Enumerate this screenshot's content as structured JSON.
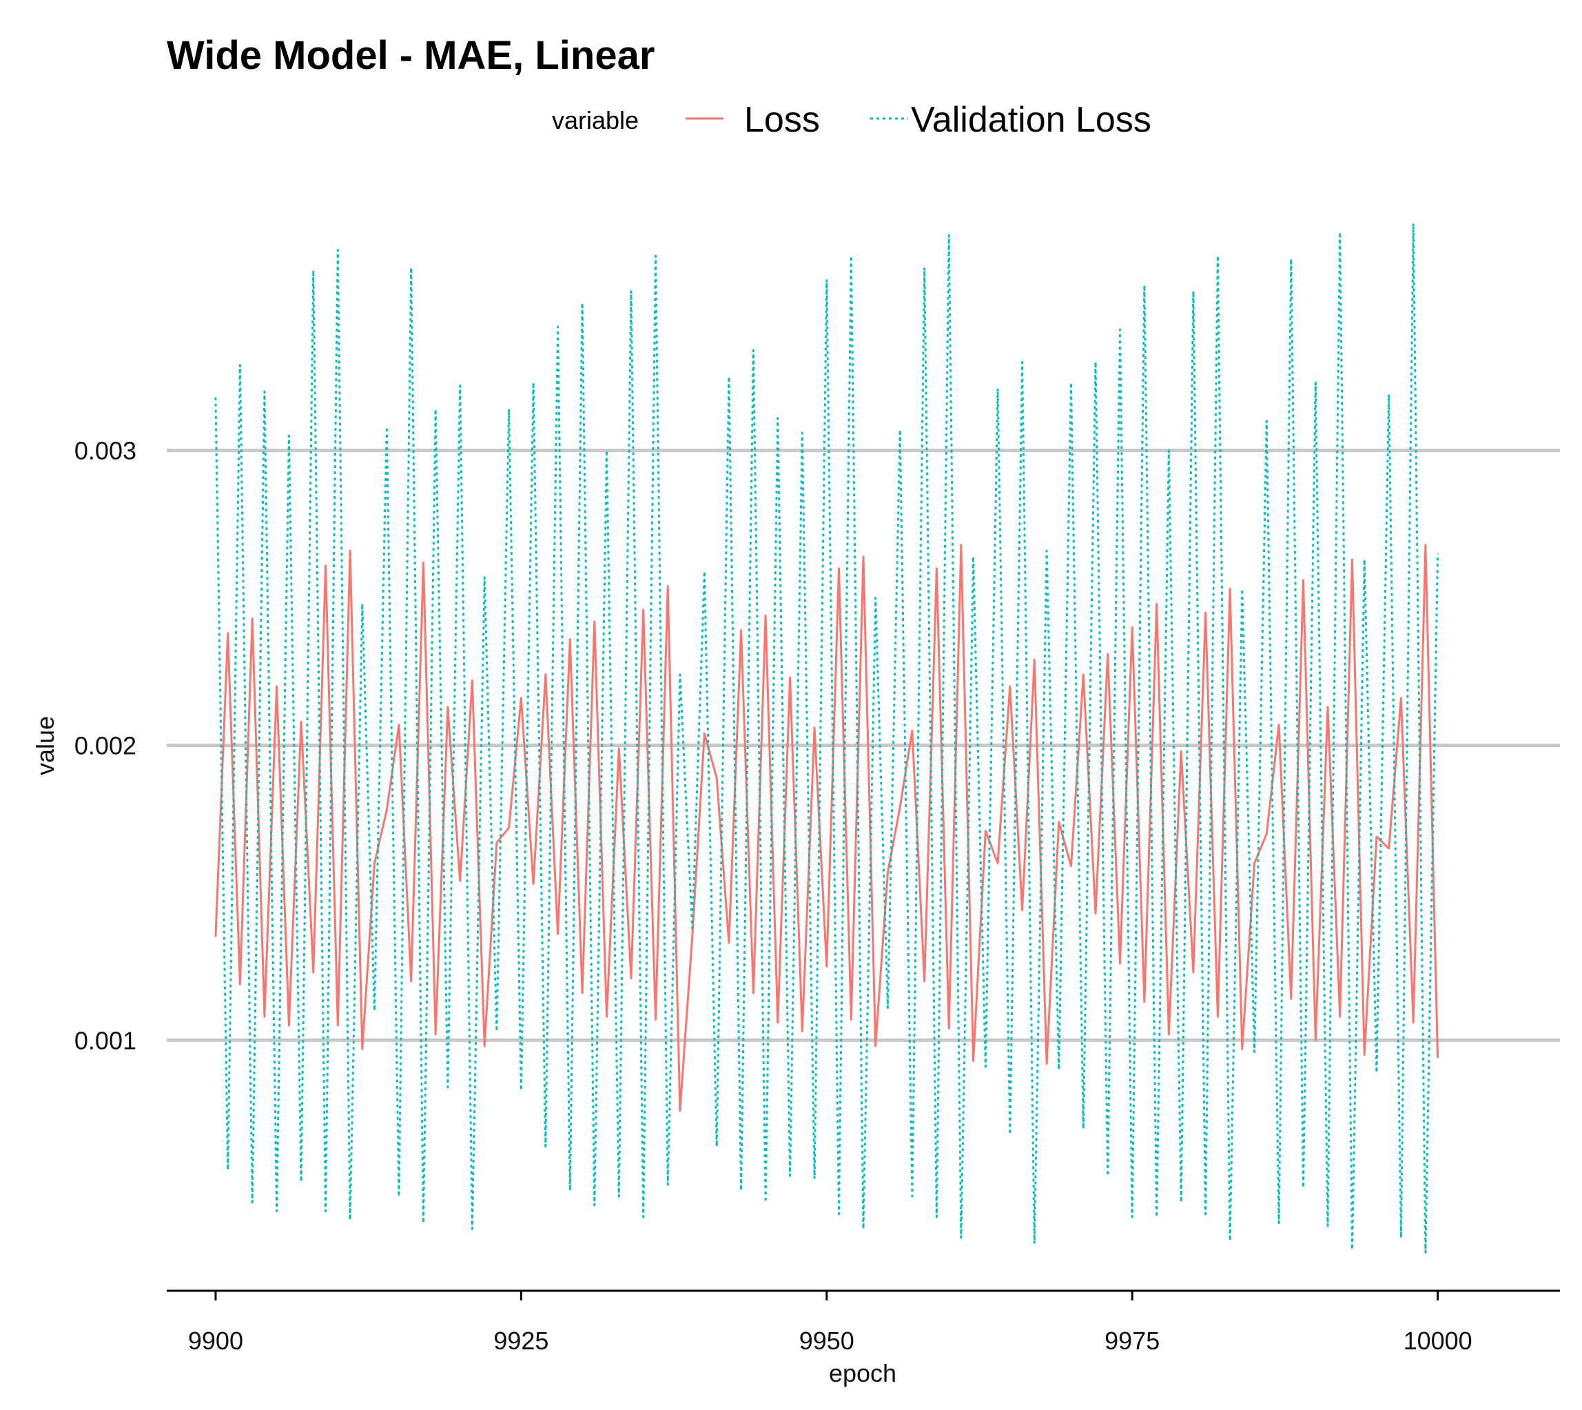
{
  "chart_data": {
    "type": "line",
    "title": "Wide Model - MAE, Linear",
    "xlabel": "epoch",
    "ylabel": "value",
    "xlim": [
      9896,
      10010
    ],
    "ylim": [
      0.00015,
      0.00385
    ],
    "x_ticks": [
      9900,
      9925,
      9950,
      9975,
      10000
    ],
    "x_tick_labels": [
      "9900",
      "9925",
      "9950",
      "9975",
      "10000"
    ],
    "y_ticks": [
      0.001,
      0.002,
      0.003
    ],
    "y_tick_labels": [
      "0.001",
      "0.002",
      "0.003"
    ],
    "grid": "horizontal major lines",
    "legend": {
      "title": "variable",
      "placement": "top",
      "entries": [
        {
          "label": "Loss",
          "color": "#F8766D",
          "linetype": "solid"
        },
        {
          "label": "Validation Loss",
          "color": "#00BFC4",
          "linetype": "dotted"
        }
      ]
    },
    "x_start": 9900,
    "x_step": 1,
    "series": [
      {
        "name": "Loss",
        "color": "#F8766D",
        "values": [
          0.00135,
          0.00238,
          0.00119,
          0.00243,
          0.00108,
          0.0022,
          0.00105,
          0.00208,
          0.00123,
          0.00261,
          0.00105,
          0.00266,
          0.00097,
          0.0016,
          0.00178,
          0.00207,
          0.0012,
          0.00262,
          0.00102,
          0.00213,
          0.00154,
          0.00222,
          0.00098,
          0.00167,
          0.00172,
          0.00216,
          0.00153,
          0.00224,
          0.00136,
          0.00236,
          0.00116,
          0.00242,
          0.00108,
          0.00199,
          0.00121,
          0.00246,
          0.00107,
          0.00254,
          0.00076,
          0.00135,
          0.00204,
          0.00189,
          0.00133,
          0.00239,
          0.00116,
          0.00244,
          0.00106,
          0.00223,
          0.00103,
          0.00206,
          0.00125,
          0.0026,
          0.00107,
          0.00264,
          0.00098,
          0.00157,
          0.00179,
          0.00205,
          0.0012,
          0.0026,
          0.00104,
          0.00268,
          0.00093,
          0.00171,
          0.0016,
          0.0022,
          0.00144,
          0.00229,
          0.00092,
          0.00174,
          0.00159,
          0.00224,
          0.00143,
          0.00231,
          0.00126,
          0.0024,
          0.00113,
          0.00248,
          0.00102,
          0.00198,
          0.00123,
          0.00245,
          0.00108,
          0.00253,
          0.00097,
          0.0016,
          0.0017,
          0.00207,
          0.00114,
          0.00256,
          0.001,
          0.00213,
          0.00108,
          0.00263,
          0.00095,
          0.00169,
          0.00165,
          0.00216,
          0.00106,
          0.00268,
          0.00094
        ]
      },
      {
        "name": "Validation Loss",
        "color": "#00BFC4",
        "values": [
          0.00318,
          0.00056,
          0.00329,
          0.00045,
          0.0032,
          0.00042,
          0.00305,
          0.00052,
          0.00361,
          0.00042,
          0.00368,
          0.00039,
          0.00248,
          0.0011,
          0.00308,
          0.00047,
          0.00362,
          0.00038,
          0.00314,
          0.00084,
          0.00322,
          0.00036,
          0.00257,
          0.00103,
          0.00314,
          0.00083,
          0.00323,
          0.00064,
          0.00342,
          0.00049,
          0.0035,
          0.00044,
          0.003,
          0.00047,
          0.00354,
          0.0004,
          0.00366,
          0.00051,
          0.00224,
          0.00138,
          0.00259,
          0.00064,
          0.00325,
          0.00049,
          0.00334,
          0.00045,
          0.00311,
          0.00054,
          0.00306,
          0.00053,
          0.00358,
          0.00041,
          0.00366,
          0.00036,
          0.0025,
          0.00111,
          0.00307,
          0.00047,
          0.00362,
          0.0004,
          0.00373,
          0.00033,
          0.00264,
          0.00091,
          0.00321,
          0.00068,
          0.0033,
          0.00031,
          0.00266,
          0.0009,
          0.00323,
          0.0007,
          0.0033,
          0.00054,
          0.00341,
          0.0004,
          0.00356,
          0.0004,
          0.003,
          0.00045,
          0.00354,
          0.00041,
          0.00366,
          0.00032,
          0.00253,
          0.00096,
          0.0031,
          0.00038,
          0.00365,
          0.0005,
          0.00323,
          0.00037,
          0.00374,
          0.00029,
          0.00263,
          0.00089,
          0.00319,
          0.00033,
          0.00377,
          0.00028,
          0.00265
        ]
      }
    ]
  }
}
